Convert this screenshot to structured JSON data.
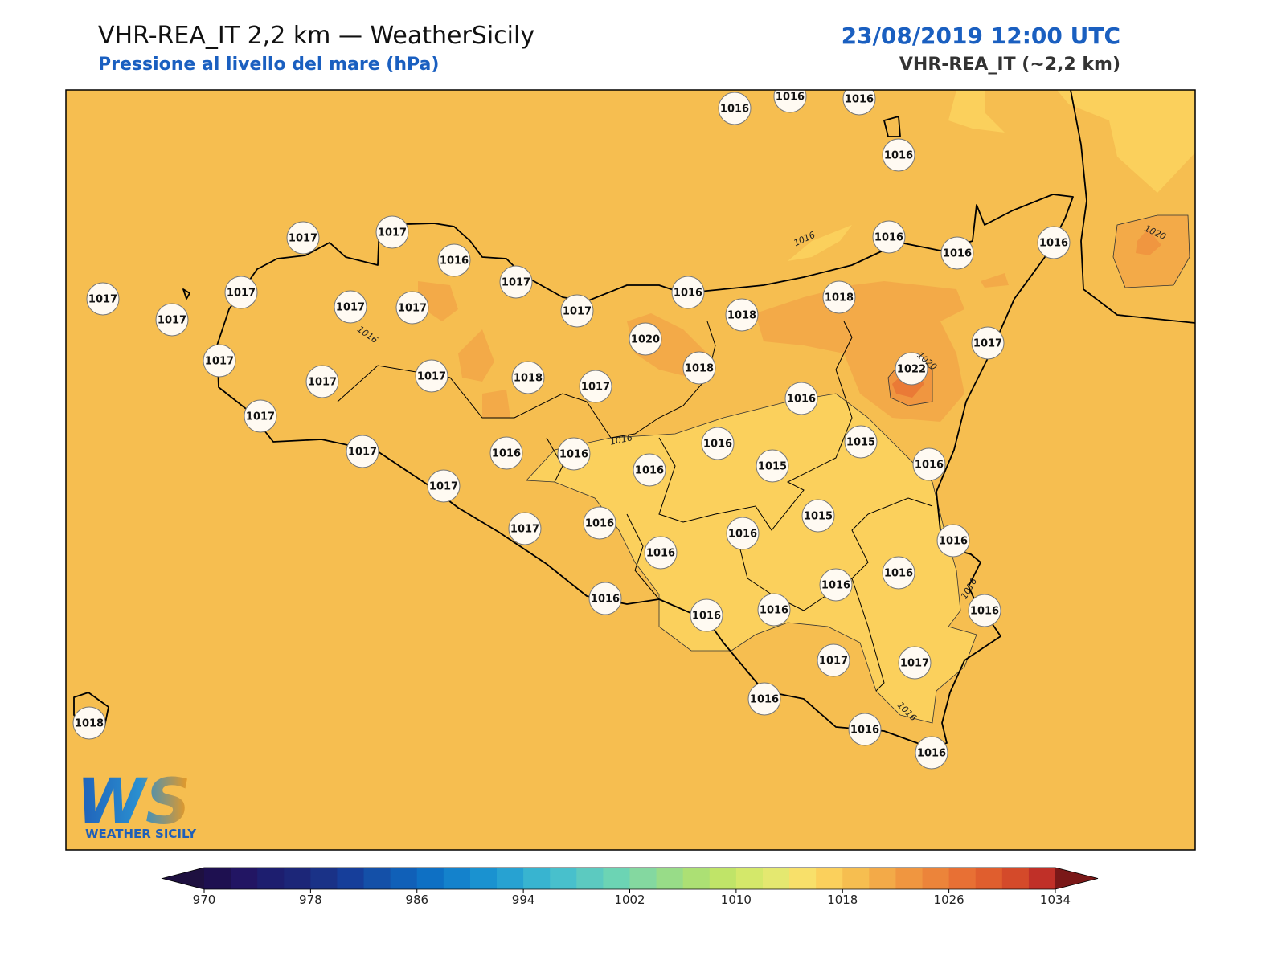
{
  "header": {
    "title": "VHR-REA_IT 2,2 km — WeatherSicily",
    "subtitle": "Pressione al livello del mare (hPa)",
    "datetime": "23/08/2019 12:00 UTC",
    "model": "VHR-REA_IT (~2,2 km)"
  },
  "map": {
    "stations": [
      1016,
      1016,
      1016,
      1016,
      1017,
      1017,
      1016,
      1017,
      1016,
      1016,
      1016,
      1017,
      1017,
      1017,
      1017,
      1017,
      1017,
      1016,
      1018,
      1018,
      1020,
      1017,
      1017,
      1017,
      1017,
      1018,
      1017,
      1018,
      1022,
      1016,
      1017,
      1017,
      1016,
      1016,
      1016,
      1016,
      1015,
      1015,
      1016,
      1017,
      1017,
      1016,
      1015,
      1016,
      1016,
      1016,
      1016,
      1016,
      1016,
      1016,
      1016,
      1016,
      1017,
      1017,
      1016,
      1016,
      1016,
      1018
    ],
    "contour_labels": [
      "1016",
      "1016",
      "1016",
      "1016",
      "1016",
      "1020",
      "1020"
    ],
    "logo": {
      "mark": "WS",
      "text": "WEATHER SICILY"
    }
  },
  "colorbar": {
    "lim": [
      970,
      1034
    ],
    "ticks": [
      970,
      978,
      986,
      994,
      1002,
      1010,
      1018,
      1026,
      1034
    ],
    "colors": [
      "#1e1050",
      "#221563",
      "#1d1e6f",
      "#1c2678",
      "#1a3287",
      "#163e9a",
      "#1450a8",
      "#1060b8",
      "#0e70c4",
      "#1482cc",
      "#1a92d0",
      "#27a2d2",
      "#38b4d0",
      "#48c0cc",
      "#5ccac0",
      "#6cd4b4",
      "#84d8a0",
      "#98dc88",
      "#ace074",
      "#c0e468",
      "#d4e86a",
      "#e4e870",
      "#f8e06a",
      "#fbd05c",
      "#f6be50",
      "#f3aa48",
      "#f09640",
      "#ec843a",
      "#e87034",
      "#e05e2e",
      "#d44a2a",
      "#c03028"
    ],
    "under_color": "#1e1040",
    "over_color": "#7a1818"
  }
}
